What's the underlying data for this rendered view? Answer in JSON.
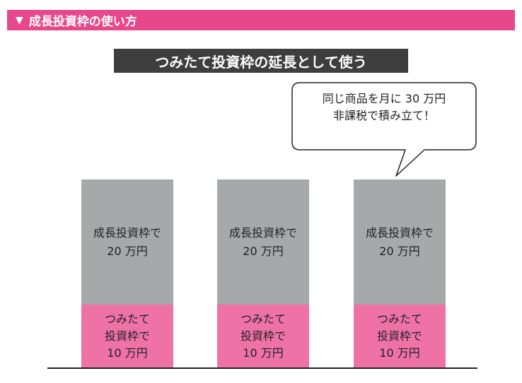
{
  "header": {
    "marker": "▼",
    "title": "成長投資枠の使い方"
  },
  "subtitle": "つみたて投資枠の延長として使う",
  "callout": {
    "line1": "同じ商品を月に 30 万円",
    "line2": "非課税で積み立て！"
  },
  "columns": [
    {
      "growth": {
        "line1": "成長投資枠で",
        "line2": "20 万円"
      },
      "tsumitate": {
        "line1": "つみたて",
        "line2": "投資枠で",
        "line3": "10 万円"
      }
    },
    {
      "growth": {
        "line1": "成長投資枠で",
        "line2": "20 万円"
      },
      "tsumitate": {
        "line1": "つみたて",
        "line2": "投資枠で",
        "line3": "10 万円"
      }
    },
    {
      "growth": {
        "line1": "成長投資枠で",
        "line2": "20 万円"
      },
      "tsumitate": {
        "line1": "つみたて",
        "line2": "投資枠で",
        "line3": "10 万円"
      }
    }
  ],
  "colors": {
    "header_bg": "#e7478b",
    "subtitle_bg": "#3e3e3e",
    "growth_segment": "#a7a8aa",
    "tsumitate_segment": "#ef72a6"
  }
}
